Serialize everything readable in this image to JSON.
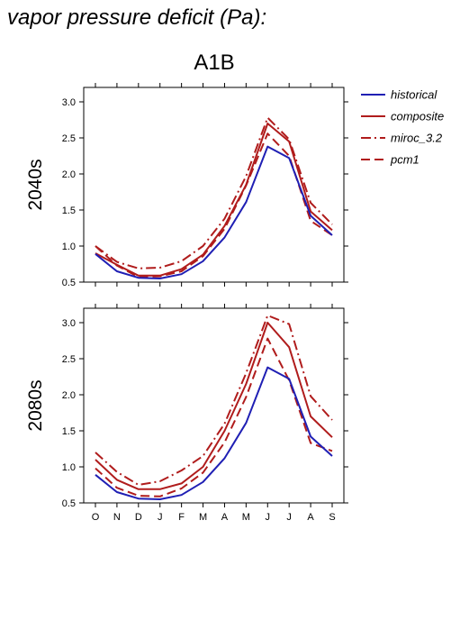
{
  "figure_title": "vapor pressure deficit (Pa):",
  "scenario_title": "A1B",
  "colors": {
    "historical": "#1f1fb4",
    "scenario": "#b01c1c"
  },
  "chart_data": {
    "type": "line",
    "x": [
      "O",
      "N",
      "D",
      "J",
      "F",
      "M",
      "A",
      "M",
      "J",
      "J",
      "A",
      "S"
    ],
    "ylim": [
      0.5,
      3.2
    ],
    "yticks": [
      "0.5",
      "1.0",
      "1.5",
      "2.0",
      "2.5",
      "3.0"
    ],
    "legend": {
      "placement": "right",
      "entries": [
        {
          "key": "historical",
          "label": "historical",
          "style": "solid",
          "color": "#1f1fb4"
        },
        {
          "key": "composite",
          "label": "composite",
          "style": "solid",
          "color": "#b01c1c"
        },
        {
          "key": "miroc",
          "label": "miroc_3.2",
          "style": "dashdot",
          "color": "#b01c1c"
        },
        {
          "key": "pcm1",
          "label": "pcm1",
          "style": "dashed",
          "color": "#b01c1c"
        }
      ]
    },
    "panels": [
      {
        "label": "2040s",
        "series": [
          {
            "key": "historical",
            "values": [
              0.89,
              0.65,
              0.56,
              0.55,
              0.61,
              0.79,
              1.12,
              1.61,
              2.38,
              2.22,
              1.42,
              1.15
            ]
          },
          {
            "key": "composite",
            "values": [
              0.9,
              0.74,
              0.59,
              0.59,
              0.68,
              0.88,
              1.28,
              1.85,
              2.7,
              2.45,
              1.48,
              1.22
            ]
          },
          {
            "key": "miroc",
            "values": [
              1.0,
              0.78,
              0.69,
              0.7,
              0.79,
              1.0,
              1.38,
              1.97,
              2.78,
              2.48,
              1.6,
              1.3
            ]
          },
          {
            "key": "pcm1",
            "values": [
              1.0,
              0.73,
              0.57,
              0.58,
              0.65,
              0.86,
              1.24,
              1.84,
              2.56,
              2.25,
              1.35,
              1.15
            ]
          }
        ]
      },
      {
        "label": "2080s",
        "series": [
          {
            "key": "historical",
            "values": [
              0.89,
              0.65,
              0.56,
              0.55,
              0.61,
              0.79,
              1.12,
              1.61,
              2.38,
              2.22,
              1.42,
              1.15
            ]
          },
          {
            "key": "composite",
            "values": [
              1.1,
              0.82,
              0.69,
              0.69,
              0.77,
              1.0,
              1.5,
              2.15,
              3.0,
              2.66,
              1.7,
              1.41
            ]
          },
          {
            "key": "miroc",
            "values": [
              1.2,
              0.93,
              0.75,
              0.8,
              0.95,
              1.15,
              1.6,
              2.3,
              3.1,
              2.98,
              1.98,
              1.65
            ]
          },
          {
            "key": "pcm1",
            "values": [
              0.98,
              0.71,
              0.6,
              0.59,
              0.7,
              0.92,
              1.34,
              1.97,
              2.78,
              2.2,
              1.33,
              1.22
            ]
          }
        ]
      }
    ]
  }
}
